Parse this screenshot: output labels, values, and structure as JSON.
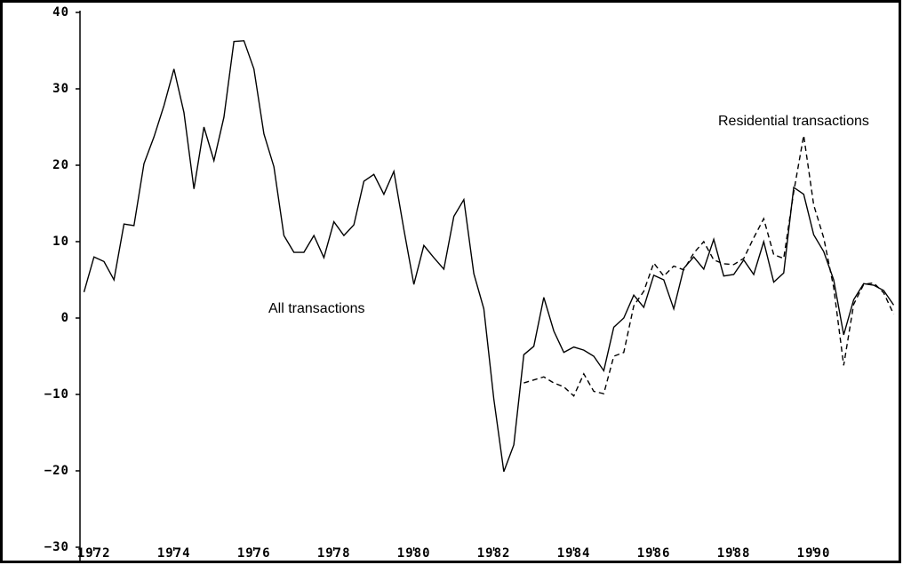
{
  "chart_data": {
    "type": "line",
    "x": [
      1971.75,
      1972,
      1972.25,
      1972.5,
      1972.75,
      1973,
      1973.25,
      1973.5,
      1973.75,
      1974,
      1974.25,
      1974.5,
      1974.75,
      1975,
      1975.25,
      1975.5,
      1975.75,
      1976,
      1976.25,
      1976.5,
      1976.75,
      1977,
      1977.25,
      1977.5,
      1977.75,
      1978,
      1978.25,
      1978.5,
      1978.75,
      1979,
      1979.25,
      1979.5,
      1979.75,
      1980,
      1980.25,
      1980.5,
      1980.75,
      1981,
      1981.25,
      1981.5,
      1981.75,
      1982,
      1982.25,
      1982.5,
      1982.75,
      1983,
      1983.25,
      1983.5,
      1983.75,
      1984,
      1984.25,
      1984.5,
      1984.75,
      1985,
      1985.25,
      1985.5,
      1985.75,
      1986,
      1986.25,
      1986.5,
      1986.75,
      1987,
      1987.25,
      1987.5,
      1987.75,
      1988,
      1988.25,
      1988.5,
      1988.75,
      1989,
      1989.25,
      1989.5,
      1989.75,
      1990,
      1990.25,
      1990.5,
      1990.75,
      1991,
      1991.25,
      1991.5,
      1991.75,
      1992
    ],
    "series": [
      {
        "name": "All transactions",
        "color": "#000000",
        "line_style": "solid",
        "values": [
          3.4,
          8.0,
          7.4,
          5.0,
          12.3,
          12.1,
          20.2,
          23.7,
          27.8,
          32.6,
          26.9,
          16.9,
          25.0,
          20.6,
          26.3,
          36.2,
          36.3,
          32.6,
          24.1,
          19.8,
          10.8,
          8.6,
          8.6,
          10.8,
          7.9,
          12.6,
          10.8,
          12.2,
          17.9,
          18.8,
          16.2,
          19.2,
          11.6,
          4.4,
          9.5,
          7.9,
          6.4,
          13.3,
          15.5,
          5.8,
          1.2,
          -10.6,
          -20.1,
          -16.6,
          -4.8,
          -3.7,
          2.7,
          -1.7,
          -4.5,
          -3.8,
          -4.2,
          -5.0,
          -6.9,
          -1.2,
          0,
          3.0,
          1.4,
          5.6,
          5.0,
          1.2,
          6.5,
          8.0,
          6.4,
          10.3,
          5.5,
          5.7,
          7.6,
          5.7,
          10.0,
          4.7,
          5.9,
          17.1,
          16.2,
          10.9,
          8.7,
          5.0,
          -2.2,
          2.4,
          4.5,
          4.3,
          3.6,
          1.7
        ]
      },
      {
        "name": "Residential transactions",
        "color": "#000000",
        "line_style": "dashed",
        "values": [
          null,
          null,
          null,
          null,
          null,
          null,
          null,
          null,
          null,
          null,
          null,
          null,
          null,
          null,
          null,
          null,
          null,
          null,
          null,
          null,
          null,
          null,
          null,
          null,
          null,
          null,
          null,
          null,
          null,
          null,
          null,
          null,
          null,
          null,
          null,
          null,
          null,
          null,
          null,
          null,
          null,
          null,
          null,
          null,
          -8.5,
          -8.1,
          -7.7,
          -8.5,
          -9.0,
          -10.2,
          -7.3,
          -9.6,
          -9.9,
          -5.0,
          -4.5,
          1.6,
          3.5,
          7.2,
          5.5,
          6.8,
          6.3,
          8.5,
          10.0,
          7.6,
          7.1,
          7.0,
          7.8,
          10.5,
          13.0,
          8.3,
          7.8,
          16.5,
          23.9,
          14.8,
          10.5,
          4.0,
          -6.2,
          1.8,
          4.4,
          4.6,
          3.3,
          0.5
        ]
      }
    ],
    "xlim": [
      1971.65,
      1992.1
    ],
    "xticks": [
      1972,
      1974,
      1976,
      1978,
      1980,
      1982,
      1984,
      1986,
      1988,
      1990
    ],
    "ylim": [
      -30,
      40
    ],
    "yticks": [
      {
        "value": -30,
        "label": "−30"
      },
      {
        "value": -20,
        "label": "−20"
      },
      {
        "value": -10,
        "label": "−10"
      },
      0,
      10,
      20,
      30,
      40
    ],
    "grid": false
  }
}
